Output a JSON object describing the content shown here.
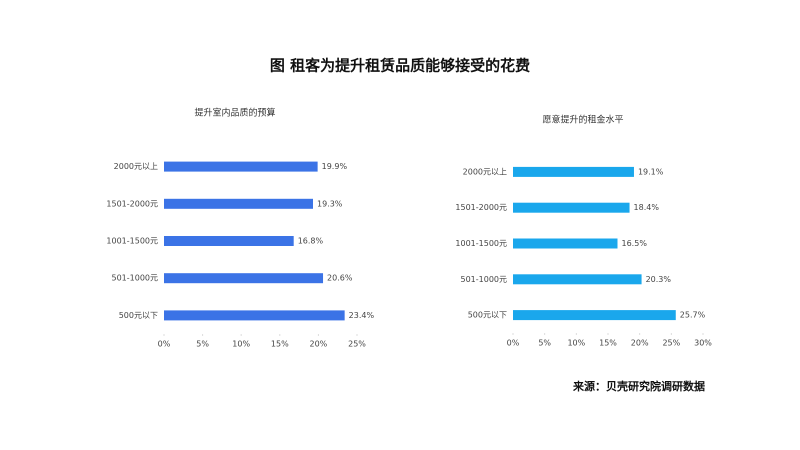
{
  "title": "图 租客为提升租赁品质能够接受的花费",
  "source": "来源：贝壳研究院调研数据",
  "chart_data": [
    {
      "type": "barh",
      "title": "提升室内品质的预算",
      "categories": [
        "2000元以上",
        "1501-2000元",
        "1001-1500元",
        "501-1000元",
        "500元以下"
      ],
      "values": [
        19.9,
        19.3,
        16.8,
        20.6,
        23.4
      ],
      "value_labels": [
        "19.9%",
        "19.3%",
        "16.8%",
        "20.6%",
        "23.4%"
      ],
      "color": "#3b73e6",
      "xlim": [
        0,
        25
      ],
      "xticks": [
        {
          "value": 0,
          "label": "0%"
        },
        {
          "value": 5,
          "label": "5%"
        },
        {
          "value": 10,
          "label": "10%"
        },
        {
          "value": 15,
          "label": "15%"
        },
        {
          "value": 20,
          "label": "20%"
        },
        {
          "value": 25,
          "label": "25%"
        }
      ]
    },
    {
      "type": "barh",
      "title": "愿意提升的租金水平",
      "categories": [
        "2000元以上",
        "1501-2000元",
        "1001-1500元",
        "501-1000元",
        "500元以下"
      ],
      "values": [
        19.1,
        18.4,
        16.5,
        20.3,
        25.7
      ],
      "value_labels": [
        "19.1%",
        "18.4%",
        "16.5%",
        "20.3%",
        "25.7%"
      ],
      "color": "#1aa7ec",
      "xlim": [
        0,
        30
      ],
      "xticks": [
        {
          "value": 0,
          "label": "0%"
        },
        {
          "value": 5,
          "label": "5%"
        },
        {
          "value": 10,
          "label": "10%"
        },
        {
          "value": 15,
          "label": "15%"
        },
        {
          "value": 20,
          "label": "20%"
        },
        {
          "value": 25,
          "label": "25%"
        },
        {
          "value": 30,
          "label": "30%"
        }
      ]
    }
  ]
}
